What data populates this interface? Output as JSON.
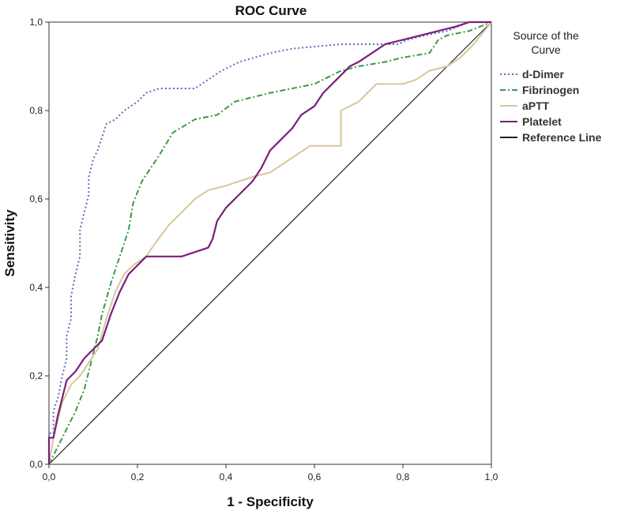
{
  "chart_data": {
    "type": "line",
    "title": "ROC Curve",
    "xlabel": "1 - Specificity",
    "ylabel": "Sensitivity",
    "xlim": [
      0,
      1
    ],
    "ylim": [
      0,
      1
    ],
    "x_ticks": [
      "0,0",
      "0,2",
      "0,4",
      "0,6",
      "0,8",
      "1,0"
    ],
    "y_ticks": [
      "0,0",
      "0,2",
      "0,4",
      "0,6",
      "0,8",
      "1,0"
    ],
    "grid": false,
    "legend": {
      "title_line1": "Source of the",
      "title_line2": "Curve",
      "position": "right"
    },
    "series": [
      {
        "name": "d-Dimer",
        "color": "#5a6fb5",
        "dash": "dotted",
        "points": [
          [
            0,
            0
          ],
          [
            0,
            0.07
          ],
          [
            0.01,
            0.07
          ],
          [
            0.01,
            0.12
          ],
          [
            0.02,
            0.15
          ],
          [
            0.03,
            0.2
          ],
          [
            0.04,
            0.24
          ],
          [
            0.04,
            0.29
          ],
          [
            0.05,
            0.33
          ],
          [
            0.05,
            0.38
          ],
          [
            0.06,
            0.43
          ],
          [
            0.07,
            0.47
          ],
          [
            0.07,
            0.53
          ],
          [
            0.08,
            0.57
          ],
          [
            0.09,
            0.61
          ],
          [
            0.09,
            0.65
          ],
          [
            0.1,
            0.69
          ],
          [
            0.11,
            0.71
          ],
          [
            0.12,
            0.74
          ],
          [
            0.13,
            0.77
          ],
          [
            0.15,
            0.78
          ],
          [
            0.17,
            0.8
          ],
          [
            0.2,
            0.82
          ],
          [
            0.22,
            0.84
          ],
          [
            0.25,
            0.85
          ],
          [
            0.33,
            0.85
          ],
          [
            0.36,
            0.87
          ],
          [
            0.39,
            0.89
          ],
          [
            0.43,
            0.91
          ],
          [
            0.5,
            0.93
          ],
          [
            0.55,
            0.94
          ],
          [
            0.66,
            0.95
          ],
          [
            0.79,
            0.95
          ],
          [
            0.81,
            0.96
          ],
          [
            0.85,
            0.97
          ],
          [
            0.9,
            0.98
          ],
          [
            0.95,
            1
          ],
          [
            1,
            1
          ]
        ]
      },
      {
        "name": "Fibrinogen",
        "color": "#3a9a4a",
        "dash": "dashdot",
        "points": [
          [
            0,
            0
          ],
          [
            0.02,
            0.04
          ],
          [
            0.04,
            0.08
          ],
          [
            0.06,
            0.12
          ],
          [
            0.08,
            0.17
          ],
          [
            0.1,
            0.25
          ],
          [
            0.11,
            0.29
          ],
          [
            0.12,
            0.34
          ],
          [
            0.14,
            0.41
          ],
          [
            0.16,
            0.47
          ],
          [
            0.18,
            0.53
          ],
          [
            0.19,
            0.59
          ],
          [
            0.21,
            0.64
          ],
          [
            0.23,
            0.67
          ],
          [
            0.25,
            0.7
          ],
          [
            0.28,
            0.75
          ],
          [
            0.33,
            0.78
          ],
          [
            0.38,
            0.79
          ],
          [
            0.42,
            0.82
          ],
          [
            0.46,
            0.83
          ],
          [
            0.5,
            0.84
          ],
          [
            0.55,
            0.85
          ],
          [
            0.6,
            0.86
          ],
          [
            0.62,
            0.87
          ],
          [
            0.66,
            0.89
          ],
          [
            0.7,
            0.9
          ],
          [
            0.76,
            0.91
          ],
          [
            0.8,
            0.92
          ],
          [
            0.86,
            0.93
          ],
          [
            0.88,
            0.96
          ],
          [
            0.9,
            0.97
          ],
          [
            0.95,
            0.98
          ],
          [
            1,
            1
          ]
        ]
      },
      {
        "name": "aPTT",
        "color": "#d6c79a",
        "dash": "solid",
        "points": [
          [
            0,
            0
          ],
          [
            0.01,
            0.06
          ],
          [
            0.03,
            0.14
          ],
          [
            0.05,
            0.18
          ],
          [
            0.07,
            0.2
          ],
          [
            0.09,
            0.23
          ],
          [
            0.11,
            0.26
          ],
          [
            0.13,
            0.33
          ],
          [
            0.15,
            0.39
          ],
          [
            0.17,
            0.43
          ],
          [
            0.19,
            0.45
          ],
          [
            0.22,
            0.47
          ],
          [
            0.24,
            0.5
          ],
          [
            0.27,
            0.54
          ],
          [
            0.3,
            0.57
          ],
          [
            0.33,
            0.6
          ],
          [
            0.36,
            0.62
          ],
          [
            0.4,
            0.63
          ],
          [
            0.43,
            0.64
          ],
          [
            0.46,
            0.65
          ],
          [
            0.5,
            0.66
          ],
          [
            0.53,
            0.68
          ],
          [
            0.56,
            0.7
          ],
          [
            0.59,
            0.72
          ],
          [
            0.66,
            0.72
          ],
          [
            0.66,
            0.8
          ],
          [
            0.7,
            0.82
          ],
          [
            0.72,
            0.84
          ],
          [
            0.74,
            0.86
          ],
          [
            0.76,
            0.86
          ],
          [
            0.8,
            0.86
          ],
          [
            0.83,
            0.87
          ],
          [
            0.86,
            0.89
          ],
          [
            0.9,
            0.9
          ],
          [
            0.93,
            0.92
          ],
          [
            0.96,
            0.95
          ],
          [
            1,
            1
          ]
        ]
      },
      {
        "name": "Platelet",
        "color": "#7a1f7a",
        "dash": "solid",
        "points": [
          [
            0,
            0
          ],
          [
            0,
            0.06
          ],
          [
            0.01,
            0.06
          ],
          [
            0.02,
            0.11
          ],
          [
            0.03,
            0.15
          ],
          [
            0.04,
            0.19
          ],
          [
            0.06,
            0.21
          ],
          [
            0.08,
            0.24
          ],
          [
            0.1,
            0.26
          ],
          [
            0.12,
            0.28
          ],
          [
            0.14,
            0.34
          ],
          [
            0.16,
            0.39
          ],
          [
            0.18,
            0.43
          ],
          [
            0.2,
            0.45
          ],
          [
            0.22,
            0.47
          ],
          [
            0.3,
            0.47
          ],
          [
            0.33,
            0.48
          ],
          [
            0.36,
            0.49
          ],
          [
            0.37,
            0.51
          ],
          [
            0.38,
            0.55
          ],
          [
            0.4,
            0.58
          ],
          [
            0.43,
            0.61
          ],
          [
            0.46,
            0.64
          ],
          [
            0.48,
            0.67
          ],
          [
            0.5,
            0.71
          ],
          [
            0.52,
            0.73
          ],
          [
            0.55,
            0.76
          ],
          [
            0.57,
            0.79
          ],
          [
            0.6,
            0.81
          ],
          [
            0.62,
            0.84
          ],
          [
            0.65,
            0.87
          ],
          [
            0.68,
            0.9
          ],
          [
            0.7,
            0.91
          ],
          [
            0.73,
            0.93
          ],
          [
            0.76,
            0.95
          ],
          [
            0.8,
            0.96
          ],
          [
            0.84,
            0.97
          ],
          [
            0.88,
            0.98
          ],
          [
            0.92,
            0.99
          ],
          [
            0.95,
            1
          ],
          [
            1,
            1
          ]
        ]
      },
      {
        "name": "Reference Line",
        "color": "#222222",
        "dash": "solid",
        "points": [
          [
            0,
            0
          ],
          [
            1,
            1
          ]
        ]
      }
    ]
  }
}
